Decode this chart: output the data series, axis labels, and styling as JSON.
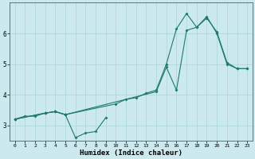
{
  "xlabel": "Humidex (Indice chaleur)",
  "bg_color": "#cce9ef",
  "line_color": "#1a7a6e",
  "grid_color": "#aad4dc",
  "xlim": [
    -0.5,
    23.5
  ],
  "ylim": [
    2.5,
    7.0
  ],
  "xticks": [
    0,
    1,
    2,
    3,
    4,
    5,
    6,
    7,
    8,
    9,
    10,
    11,
    12,
    13,
    14,
    15,
    16,
    17,
    18,
    19,
    20,
    21,
    22,
    23
  ],
  "yticks": [
    3,
    4,
    5,
    6
  ],
  "line1_x": [
    0,
    1,
    2,
    3,
    4,
    5,
    6,
    7,
    8,
    9
  ],
  "line1_y": [
    3.2,
    3.3,
    3.3,
    3.4,
    3.45,
    3.35,
    2.6,
    2.75,
    2.8,
    3.25
  ],
  "line2_x": [
    0,
    3,
    4,
    5,
    10,
    11,
    12,
    13,
    14,
    15,
    16,
    17,
    18,
    19,
    20,
    21,
    22,
    23
  ],
  "line2_y": [
    3.2,
    3.4,
    3.45,
    3.35,
    3.7,
    3.85,
    3.9,
    4.05,
    4.15,
    5.0,
    6.15,
    6.65,
    6.2,
    6.55,
    6.0,
    5.0,
    4.85,
    4.85
  ],
  "line3_x": [
    0,
    3,
    4,
    5,
    14,
    15,
    16,
    17,
    18,
    19,
    20,
    21,
    22,
    23
  ],
  "line3_y": [
    3.2,
    3.4,
    3.45,
    3.35,
    4.1,
    4.9,
    4.15,
    6.1,
    6.2,
    6.5,
    6.05,
    5.05,
    4.85,
    4.85
  ]
}
